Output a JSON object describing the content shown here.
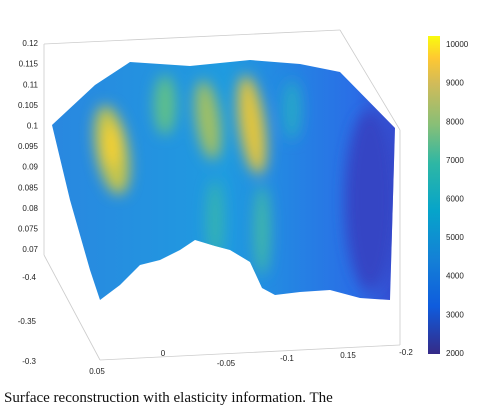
{
  "figure": {
    "z_ticks": [
      "0.12",
      "0.115",
      "0.11",
      "0.105",
      "0.1",
      "0.095",
      "0.09",
      "0.085",
      "0.08",
      "0.075",
      "0.07"
    ],
    "y_ticks": [
      "-0.4",
      "-0.35",
      "-0.3"
    ],
    "x_ticks": [
      "0.05",
      "0",
      "-0.05",
      "-0.1",
      "0.15",
      "-0.2"
    ],
    "colorbar_ticks": [
      "10000",
      "9000",
      "8000",
      "7000",
      "6000",
      "5000",
      "4000",
      "3000",
      "2000"
    ]
  },
  "caption": "Surface reconstruction with elasticity information. The"
}
